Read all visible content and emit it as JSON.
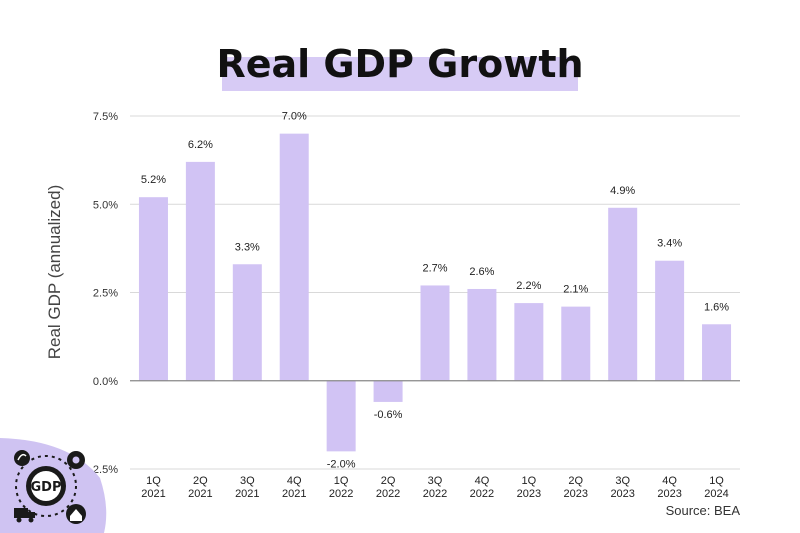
{
  "title": "Real GDP Growth",
  "source": "Source: BEA",
  "badge_text": "GDP",
  "colors": {
    "bar": "#d1c3f4",
    "grid": "#d9d9d9",
    "zero": "#888888",
    "highlight": "#d7cbf5",
    "badge": "#cfc3f2"
  },
  "chart_data": {
    "type": "bar",
    "title": "Real GDP Growth",
    "xlabel": "",
    "ylabel": "Real GDP (annualized)",
    "ylim": [
      -2.5,
      7.5
    ],
    "yticks": [
      -2.5,
      0.0,
      2.5,
      5.0,
      7.5
    ],
    "ytick_labels": [
      "-2.5%",
      "0.0%",
      "2.5%",
      "5.0%",
      "7.5%"
    ],
    "grid": true,
    "categories": [
      "1Q 2021",
      "2Q 2021",
      "3Q 2021",
      "4Q 2021",
      "1Q 2022",
      "2Q 2022",
      "3Q 2022",
      "4Q 2022",
      "1Q 2023",
      "2Q 2023",
      "3Q 2023",
      "4Q 2023",
      "1Q 2024"
    ],
    "category_lines": [
      [
        "1Q",
        "2021"
      ],
      [
        "2Q",
        "2021"
      ],
      [
        "3Q",
        "2021"
      ],
      [
        "4Q",
        "2021"
      ],
      [
        "1Q",
        "2022"
      ],
      [
        "2Q",
        "2022"
      ],
      [
        "3Q",
        "2022"
      ],
      [
        "4Q",
        "2022"
      ],
      [
        "1Q",
        "2023"
      ],
      [
        "2Q",
        "2023"
      ],
      [
        "3Q",
        "2023"
      ],
      [
        "4Q",
        "2023"
      ],
      [
        "1Q",
        "2024"
      ]
    ],
    "values": [
      5.2,
      6.2,
      3.3,
      7.0,
      -2.0,
      -0.6,
      2.7,
      2.6,
      2.2,
      2.1,
      4.9,
      3.4,
      1.6
    ],
    "data_labels": [
      "5.2%",
      "6.2%",
      "3.3%",
      "7.0%",
      "-2.0%",
      "-0.6%",
      "2.7%",
      "2.6%",
      "2.2%",
      "2.1%",
      "4.9%",
      "3.4%",
      "1.6%"
    ]
  }
}
